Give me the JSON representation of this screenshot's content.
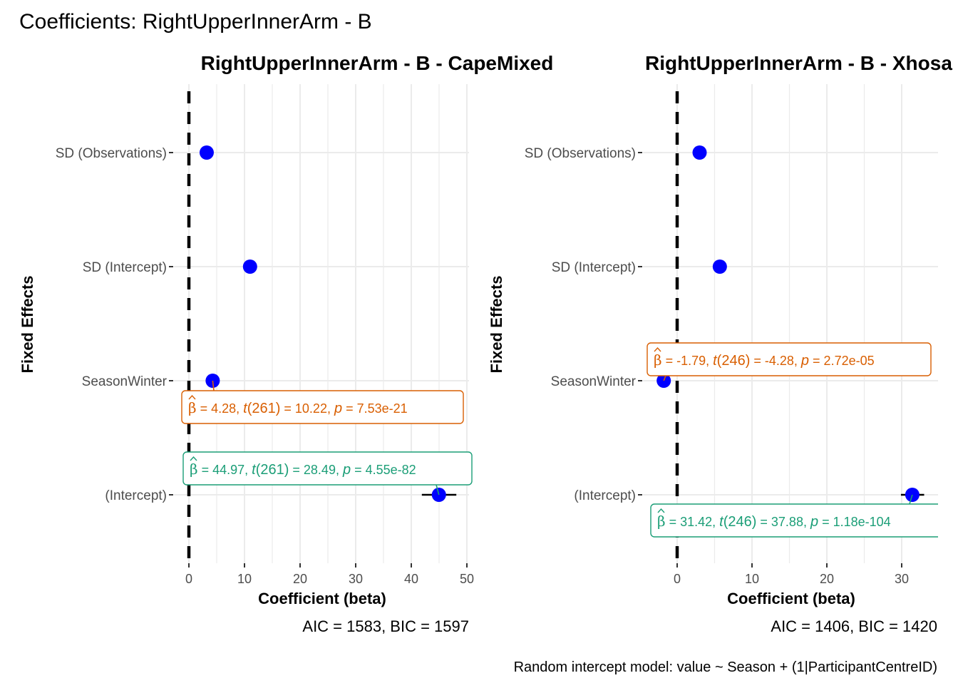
{
  "figure": {
    "title": "Coefficients: RightUpperInnerArm - B",
    "footer": "Random intercept model: value ~ Season + (1|ParticipantCentreID)"
  },
  "colors": {
    "point": "#0000ff",
    "zero_line": "#000000",
    "grid": "#ebebeb",
    "season_annotation": "#d95f02",
    "intercept_annotation": "#1b9e77"
  },
  "chart_data": [
    {
      "type": "scatter",
      "title": "RightUpperInnerArm - B - CapeMixed",
      "xlabel": "Coefficient (beta)",
      "ylabel": "Fixed Effects",
      "caption": "AIC = 1583, BIC = 1597",
      "xlim": [
        0,
        50
      ],
      "xticks": [
        0,
        10,
        20,
        30,
        40,
        50
      ],
      "categories": [
        "SD (Observations)",
        "SD (Intercept)",
        "SeasonWinter",
        "(Intercept)"
      ],
      "points": [
        {
          "term": "SD (Observations)",
          "estimate": 3.2
        },
        {
          "term": "SD (Intercept)",
          "estimate": 11.0
        },
        {
          "term": "SeasonWinter",
          "estimate": 4.28,
          "ci": [
            3.6,
            5.0
          ]
        },
        {
          "term": "(Intercept)",
          "estimate": 44.97,
          "ci": [
            41.9,
            48.1
          ]
        }
      ],
      "annotations": [
        {
          "term": "SeasonWinter",
          "hat": "β",
          "eq1": " = 4.28, ",
          "t": "t",
          "df": "(261)",
          "eq2": " = 10.22, ",
          "p": "p",
          "eq3": " = 7.53e-21"
        },
        {
          "term": "(Intercept)",
          "hat": "β",
          "eq1": " = 44.97, ",
          "t": "t",
          "df": "(261)",
          "eq2": " = 28.49, ",
          "p": "p",
          "eq3": " = 4.55e-82"
        }
      ]
    },
    {
      "type": "scatter",
      "title": "RightUpperInnerArm - B - Xhosa",
      "xlabel": "Coefficient (beta)",
      "ylabel": "Fixed Effects",
      "caption": "AIC = 1406, BIC = 1420",
      "xlim": [
        0,
        35
      ],
      "xticks": [
        0,
        10,
        20,
        30
      ],
      "categories": [
        "SD (Observations)",
        "SD (Intercept)",
        "SeasonWinter",
        "(Intercept)"
      ],
      "points": [
        {
          "term": "SD (Observations)",
          "estimate": 3.0
        },
        {
          "term": "SD (Intercept)",
          "estimate": 5.7
        },
        {
          "term": "SeasonWinter",
          "estimate": -1.79,
          "ci": [
            -2.3,
            -1.3
          ]
        },
        {
          "term": "(Intercept)",
          "estimate": 31.42,
          "ci": [
            29.9,
            33.0
          ]
        }
      ],
      "annotations": [
        {
          "term": "SeasonWinter",
          "hat": "β",
          "eq1": " = -1.79, ",
          "t": "t",
          "df": "(246)",
          "eq2": " = -4.28, ",
          "p": "p",
          "eq3": " = 2.72e-05"
        },
        {
          "term": "(Intercept)",
          "hat": "β",
          "eq1": " = 31.42, ",
          "t": "t",
          "df": "(246)",
          "eq2": " = 37.88, ",
          "p": "p",
          "eq3": " = 1.18e-104"
        }
      ]
    }
  ]
}
